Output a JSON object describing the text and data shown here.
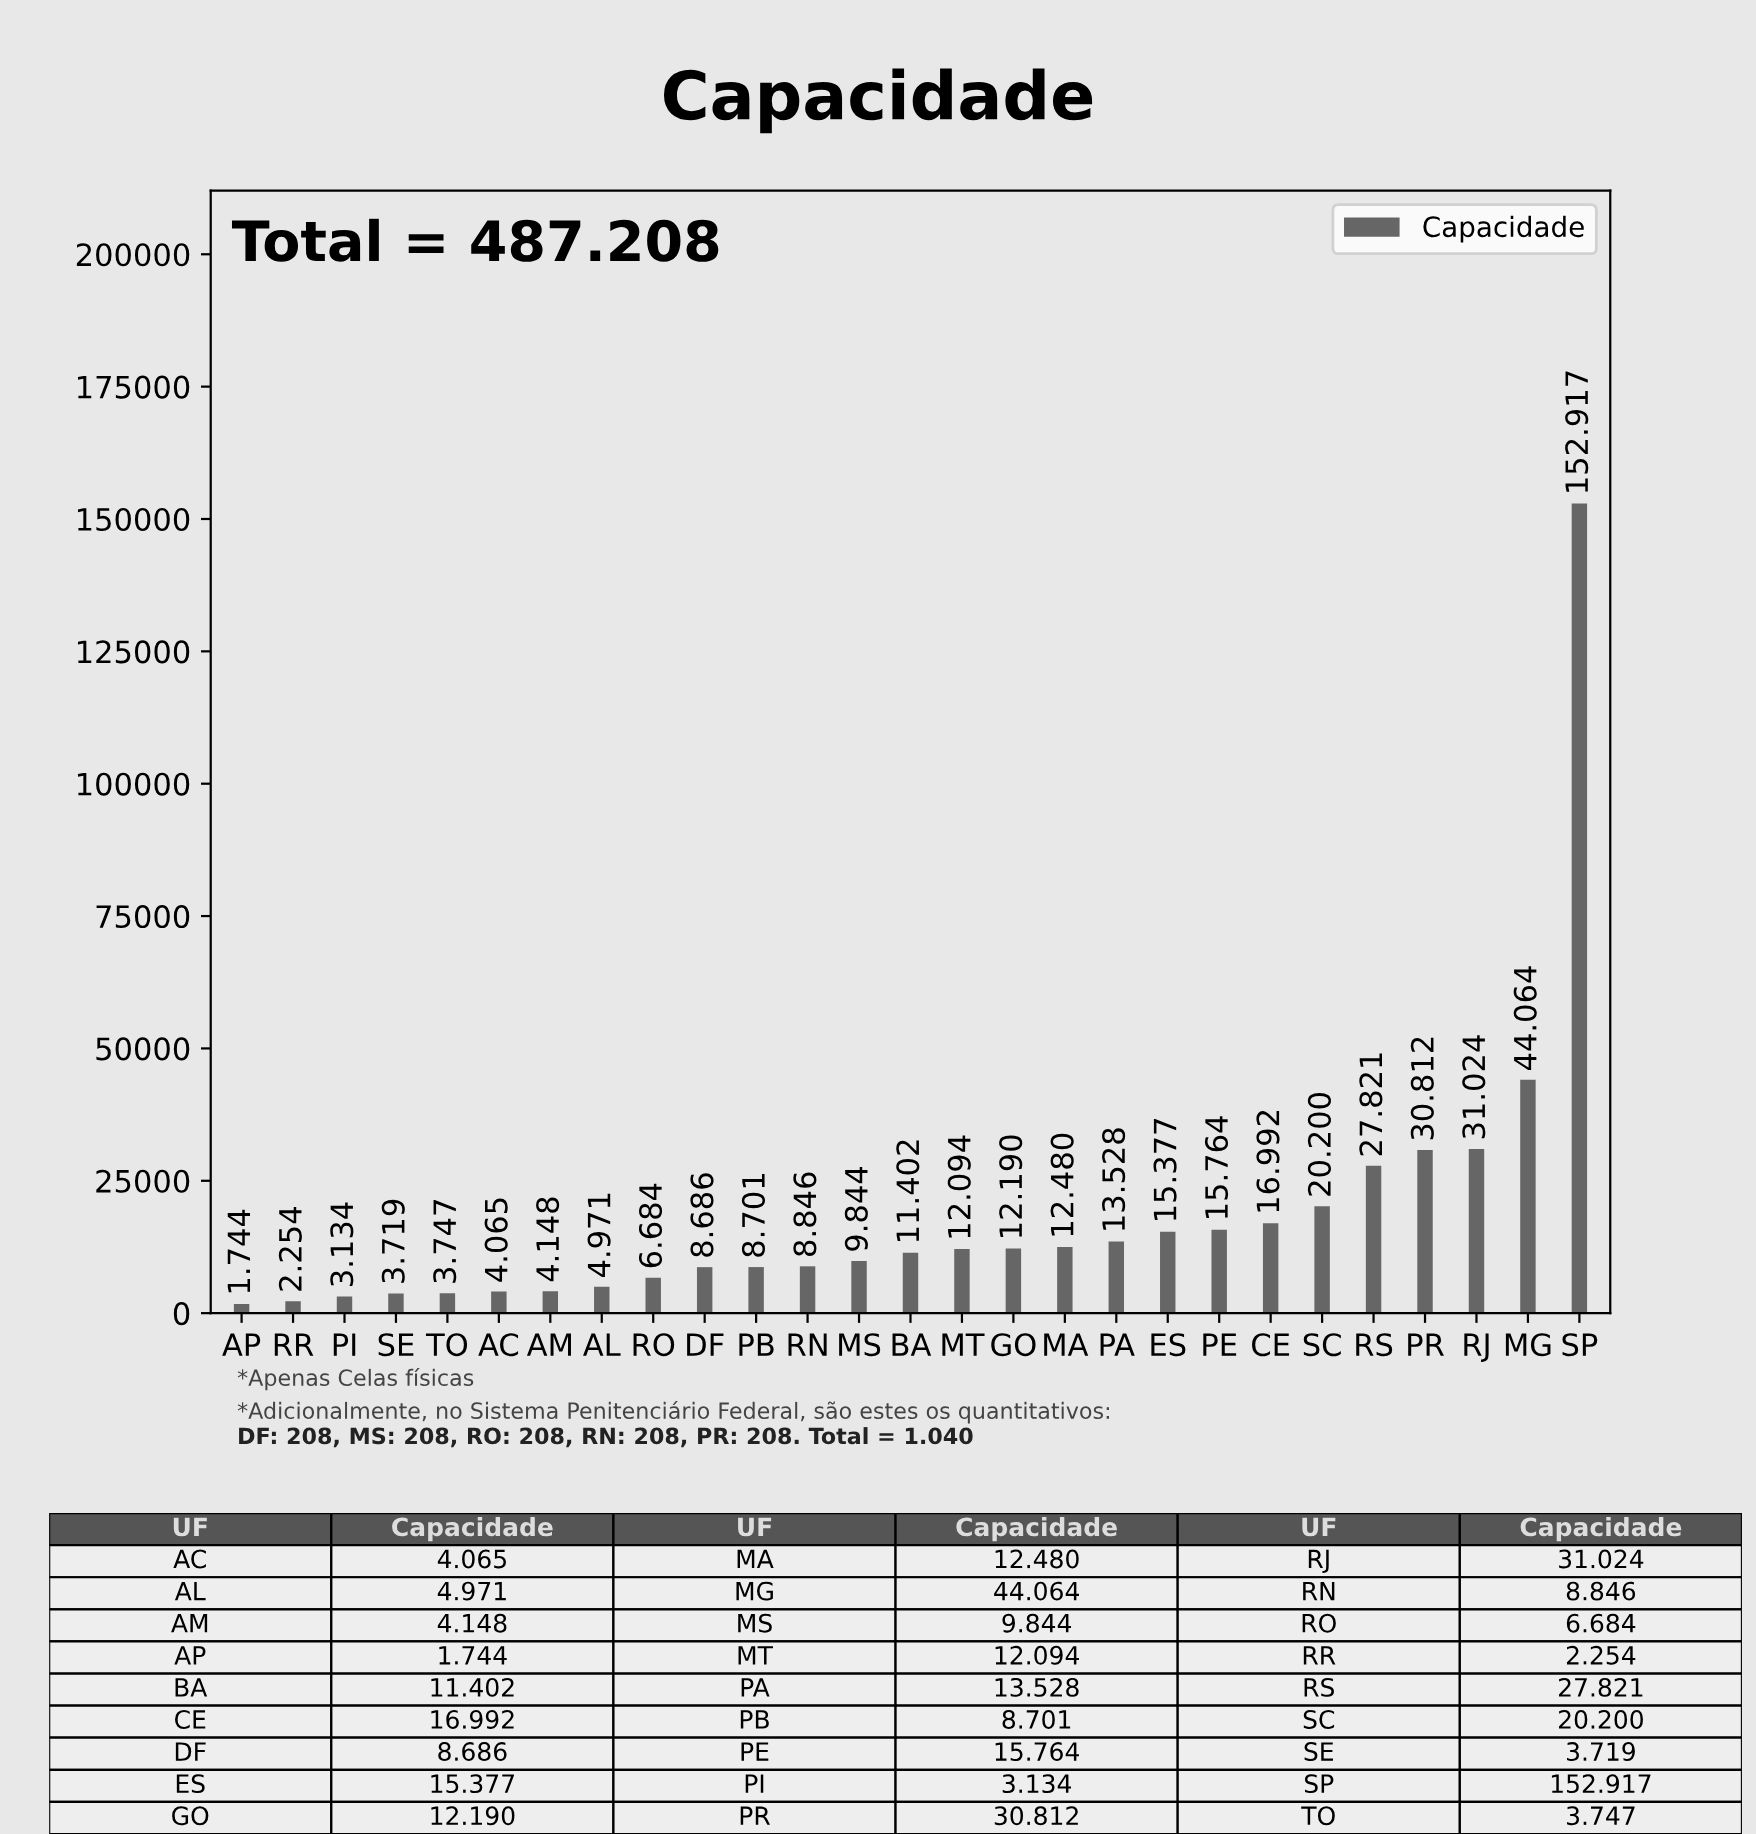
{
  "chart_data": {
    "type": "bar",
    "title": "Capacidade",
    "categories": [
      "AP",
      "RR",
      "PI",
      "SE",
      "TO",
      "AC",
      "AM",
      "AL",
      "RO",
      "DF",
      "PB",
      "RN",
      "MS",
      "BA",
      "MT",
      "GO",
      "MA",
      "PA",
      "ES",
      "PE",
      "CE",
      "SC",
      "RS",
      "PR",
      "RJ",
      "MG",
      "SP"
    ],
    "series": [
      {
        "name": "Capacidade",
        "color": "#666666",
        "values": [
          1744,
          2254,
          3134,
          3719,
          3747,
          4065,
          4148,
          4971,
          6684,
          8686,
          8701,
          8846,
          9844,
          11402,
          12094,
          12190,
          12480,
          13528,
          15377,
          15764,
          16992,
          20200,
          27821,
          30812,
          31024,
          44064,
          152917
        ],
        "value_labels": [
          "1.744",
          "2.254",
          "3.134",
          "3.719",
          "3.747",
          "4.065",
          "4.148",
          "4.971",
          "6.684",
          "8.686",
          "8.701",
          "8.846",
          "9.844",
          "11.402",
          "12.094",
          "12.190",
          "12.480",
          "13.528",
          "15.377",
          "15.764",
          "16.992",
          "20.200",
          "27.821",
          "30.812",
          "31.024",
          "44.064",
          "152.917"
        ]
      }
    ],
    "ylim": [
      0,
      212000
    ],
    "yticks": [
      0,
      25000,
      50000,
      75000,
      100000,
      125000,
      150000,
      175000,
      200000
    ],
    "legend": "top right",
    "grid": false,
    "annotations": [
      "Total = 487.208",
      "*Apenas Celas físicas",
      "*Adicionalmente, no Sistema Penitenciário Federal, são estes os quantitativos:",
      "DF: 208, MS: 208, RO: 208, RN: 208, PR: 208. Total = 1.040",
      "UF",
      "Capacidade"
    ]
  }
}
